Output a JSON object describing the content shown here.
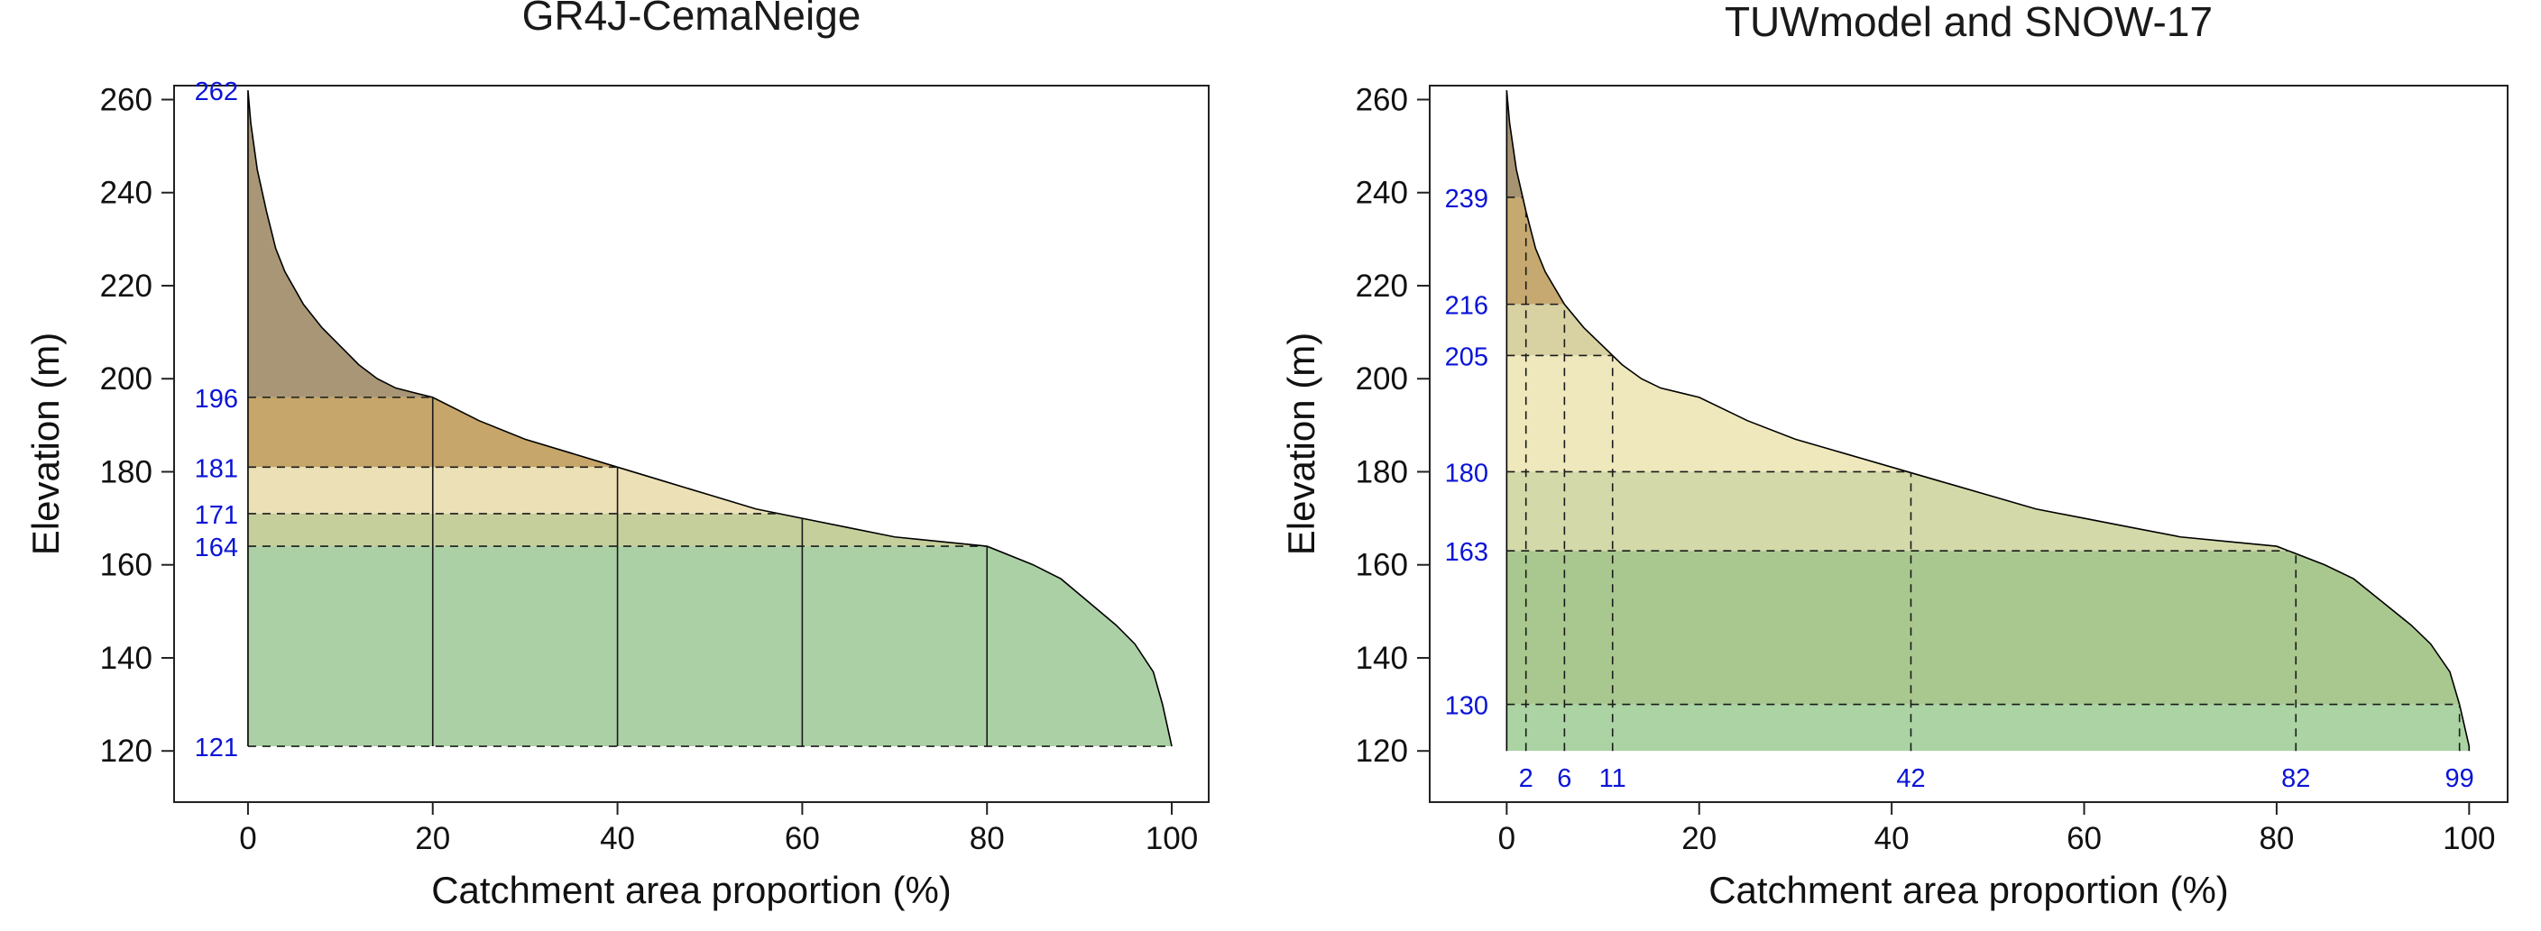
{
  "colors": {
    "annotation": "#0a14d6",
    "axis": "#222222",
    "curve": "#000000"
  },
  "chart_data": [
    {
      "type": "area",
      "title": "GR4J-CemaNeige",
      "xlabel": "Catchment area proportion (%)",
      "ylabel": "Elevation (m)",
      "xlim": [
        -8,
        104
      ],
      "ylim": [
        109,
        263
      ],
      "xticks": [
        0,
        20,
        40,
        60,
        80,
        100
      ],
      "yticks": [
        120,
        140,
        160,
        180,
        200,
        220,
        240,
        260
      ],
      "hypsometric_curve": {
        "x": [
          0,
          0.3,
          1,
          2,
          3,
          4,
          6,
          8,
          10,
          12,
          14,
          16,
          18,
          20,
          25,
          30,
          35,
          40,
          45,
          50,
          55,
          60,
          65,
          70,
          75,
          80,
          85,
          88,
          91,
          94,
          96,
          98,
          99,
          100
        ],
        "y": [
          262,
          255,
          245,
          236,
          228,
          223,
          216,
          211,
          207,
          203,
          200,
          198,
          197,
          196,
          191,
          187,
          184,
          181,
          178,
          175,
          172,
          170,
          168,
          166,
          165,
          164,
          160,
          157,
          152,
          147,
          143,
          137,
          130,
          121
        ]
      },
      "band_boundaries_elevation": [
        "262",
        "196",
        "181",
        "171",
        "164",
        "121"
      ],
      "band_boundaries_area": [
        20,
        40,
        60,
        80
      ],
      "bands": [
        {
          "from": 196,
          "to": 262,
          "color": "#a89676"
        },
        {
          "from": 181,
          "to": 196,
          "color": "#c6a66a"
        },
        {
          "from": 171,
          "to": 181,
          "color": "#ebe0b6"
        },
        {
          "from": 164,
          "to": 171,
          "color": "#c5cf9c"
        },
        {
          "from": 121,
          "to": 164,
          "color": "#abd0a5"
        }
      ],
      "dashed_levels": [
        196,
        181,
        171,
        164,
        121
      ],
      "vertical_lines_style": "solid"
    },
    {
      "type": "area",
      "title": "TUWmodel and SNOW-17",
      "xlabel": "Catchment area proportion (%)",
      "ylabel": "Elevation (m)",
      "xlim": [
        -8,
        104
      ],
      "ylim": [
        109,
        263
      ],
      "xticks": [
        0,
        20,
        40,
        60,
        80,
        100
      ],
      "yticks": [
        120,
        140,
        160,
        180,
        200,
        220,
        240,
        260
      ],
      "hypsometric_curve": {
        "x": [
          0,
          0.3,
          1,
          2,
          3,
          4,
          6,
          8,
          10,
          12,
          14,
          16,
          18,
          20,
          25,
          30,
          35,
          40,
          45,
          50,
          55,
          60,
          65,
          70,
          75,
          80,
          85,
          88,
          91,
          94,
          96,
          98,
          99,
          100
        ],
        "y": [
          262,
          255,
          245,
          236,
          228,
          223,
          216,
          211,
          207,
          203,
          200,
          198,
          197,
          196,
          191,
          187,
          184,
          181,
          178,
          175,
          172,
          170,
          168,
          166,
          165,
          164,
          160,
          157,
          152,
          147,
          143,
          137,
          130,
          121
        ]
      },
      "band_boundaries_elevation": [
        "239",
        "216",
        "205",
        "180",
        "163",
        "130"
      ],
      "band_boundaries_area": [
        "2",
        "6",
        "11",
        "42",
        "82",
        "99"
      ],
      "bands": [
        {
          "from": 239,
          "to": 262,
          "color": "#a69372"
        },
        {
          "from": 216,
          "to": 239,
          "color": "#c6a970"
        },
        {
          "from": 205,
          "to": 216,
          "color": "#d8d2a2"
        },
        {
          "from": 180,
          "to": 205,
          "color": "#efe8bc"
        },
        {
          "from": 163,
          "to": 180,
          "color": "#d4d9a9"
        },
        {
          "from": 130,
          "to": 163,
          "color": "#a9c88f"
        },
        {
          "from": 120,
          "to": 130,
          "color": "#abd3a4"
        }
      ],
      "dashed_levels": [
        239,
        216,
        205,
        180,
        163,
        130
      ],
      "vertical_lines_style": "dashed"
    }
  ]
}
